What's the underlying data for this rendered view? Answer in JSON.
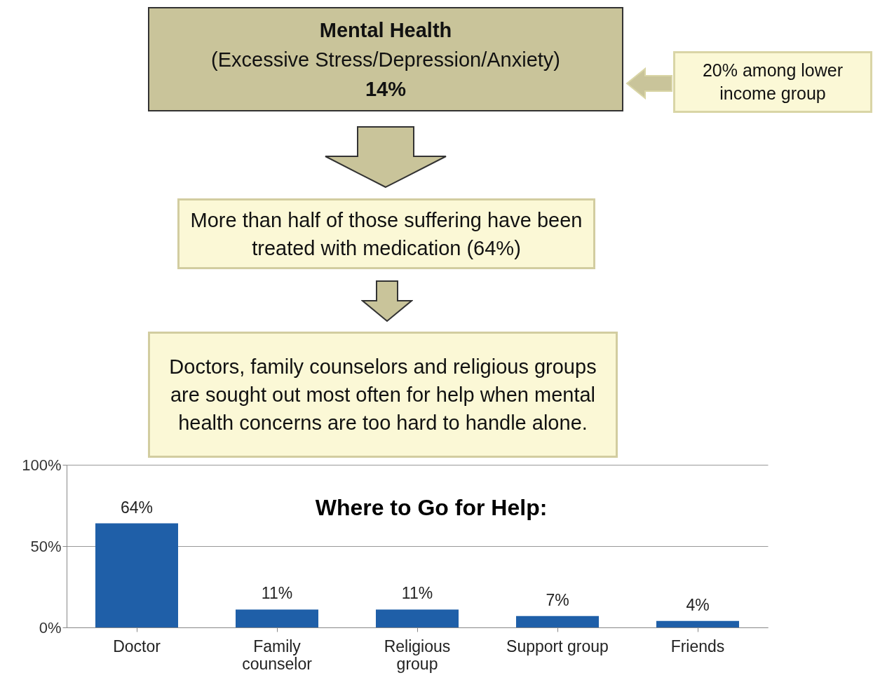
{
  "chart_data": {
    "type": "bar",
    "title": "Where to Go for Help:",
    "categories": [
      "Doctor",
      "Family counselor",
      "Religious group",
      "Support group",
      "Friends"
    ],
    "values": [
      64,
      11,
      11,
      7,
      4
    ],
    "value_labels": [
      "64%",
      "11%",
      "11%",
      "7%",
      "4%"
    ],
    "color": "#1f5fa8",
    "ylim": [
      0,
      100
    ],
    "yticks": [
      {
        "value": 0,
        "label": "0%"
      },
      {
        "value": 50,
        "label": "50%"
      },
      {
        "value": 100,
        "label": "100%"
      }
    ],
    "grid": "y",
    "annotations": [
      "Mental Health",
      "(Excessive Stress/Depression/Anxiety)",
      "14%",
      "20% among lower income group",
      "More than half of those suffering have been treated with medication (64%)",
      "Doctors, family counselors and religious groups are sought out most often for help when mental health concerns are too hard to handle alone."
    ]
  }
}
